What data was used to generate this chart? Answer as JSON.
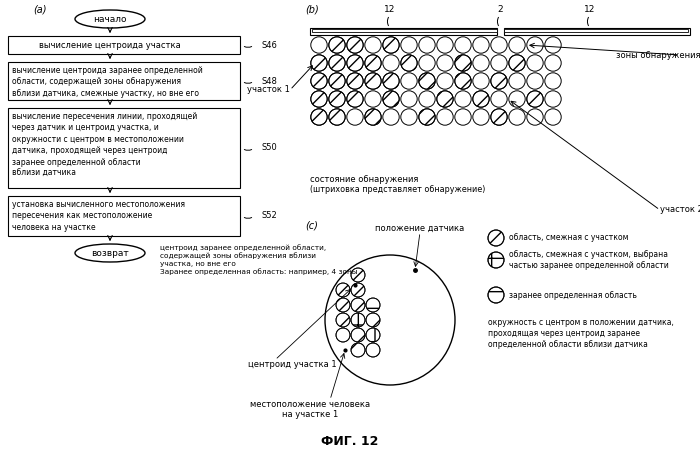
{
  "title": "ФИГ. 12",
  "bg_color": "#ffffff",
  "label_a": "(a)",
  "label_b": "(b)",
  "label_c": "(c)",
  "flowchart": {
    "start_text": "начало",
    "step1_text": "вычисление центроида участка",
    "step1_label": "S46",
    "step2_text": "вычисление центроида заранее определенной\nобласти, содержащей зоны обнаружения\nвблизи датчика, смежные участку, но вне его",
    "step2_label": "S48",
    "step3_text": "вычисление пересечения линии, проходящей\nчерез датчик и центроид участка, и\nокружности с центром в местоположении\nдатчика, проходящей через центроид\nзаранее определенной области\nвблизи датчика",
    "step3_label": "S50",
    "step4_text": "установка вычисленного местоположения\nпересечения как местоположение\nчеловека на участке",
    "step4_label": "S52",
    "end_text": "возврат"
  },
  "annotation_text": "центроид заранее определенной области,\nсодержащей зоны обнаружения вблизи\nучастка, но вне его\nЗаранее определенная область: например, 4 зоны",
  "centroid_label": "центроид участка 1",
  "person_label": "местоположение человека\nна участке 1",
  "sensor_label": "положение датчика",
  "b_labels": {
    "num12a": "12",
    "num2": "2",
    "num12b": "12",
    "zone_label": "зоны обнаружения",
    "sector1": "участок 1",
    "sector2": "участок 2",
    "detect_state": "состояние обнаружения",
    "detect_note": "(штриховка представляет обнаружение)"
  },
  "legend": {
    "item1_text": "область, смежная с участком",
    "item2_text": "область, смежная с участком, выбрана\nчастью заранее определенной области",
    "item3_text": "заранее определенная область",
    "item4_text": "окружность с центром в положении датчика,\nпроходящая через центроид заранее\nопределенной области вблизи датчика"
  }
}
